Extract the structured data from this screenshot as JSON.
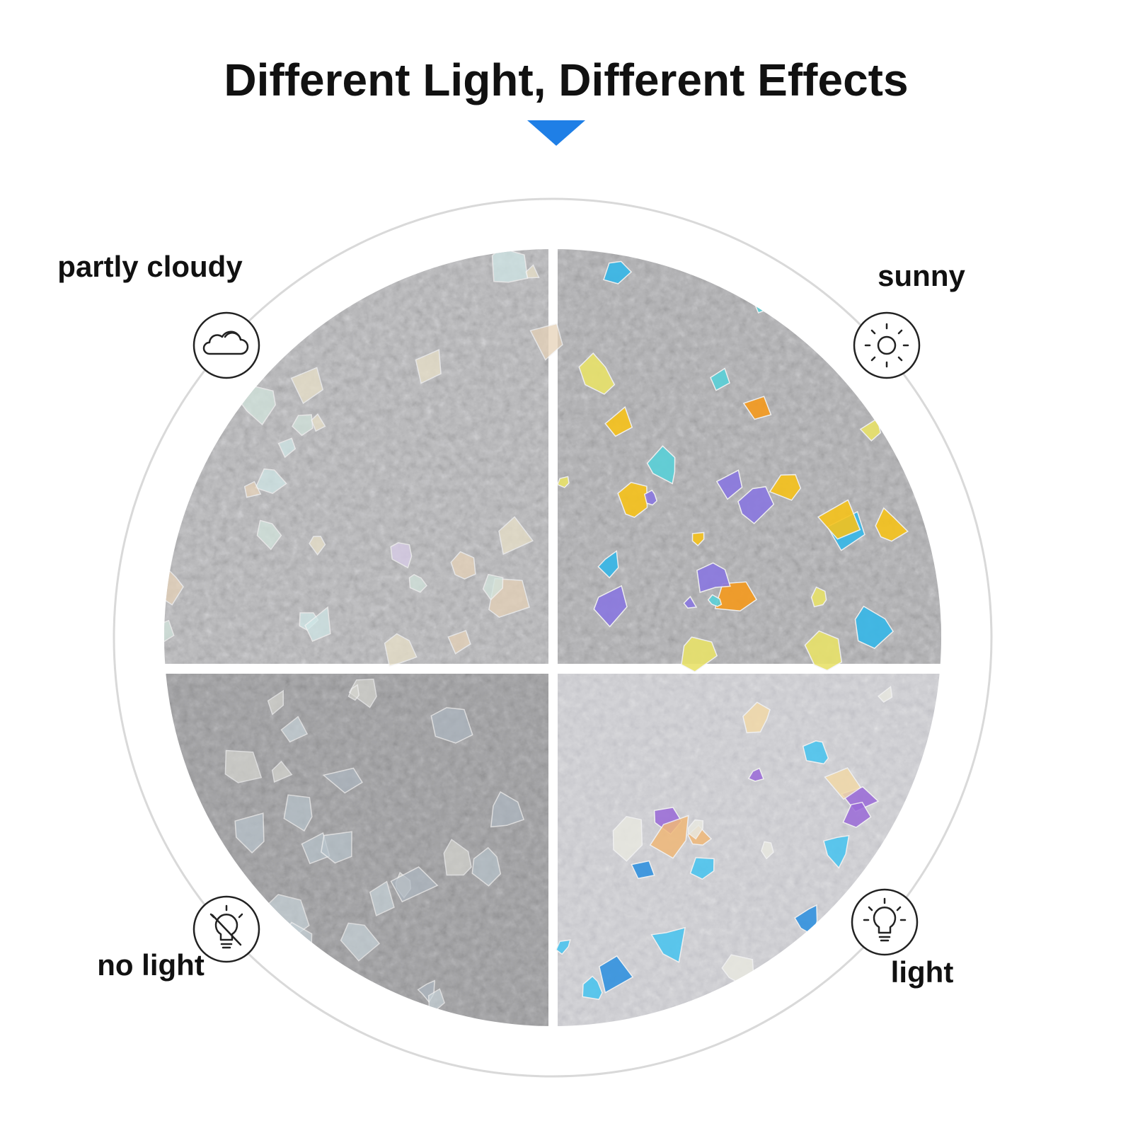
{
  "header": {
    "title": "Different Light, Different Effects"
  },
  "quadrants": [
    {
      "label": "partly cloudy"
    },
    {
      "label": "sunny"
    },
    {
      "label": "no light"
    },
    {
      "label": "light"
    }
  ]
}
